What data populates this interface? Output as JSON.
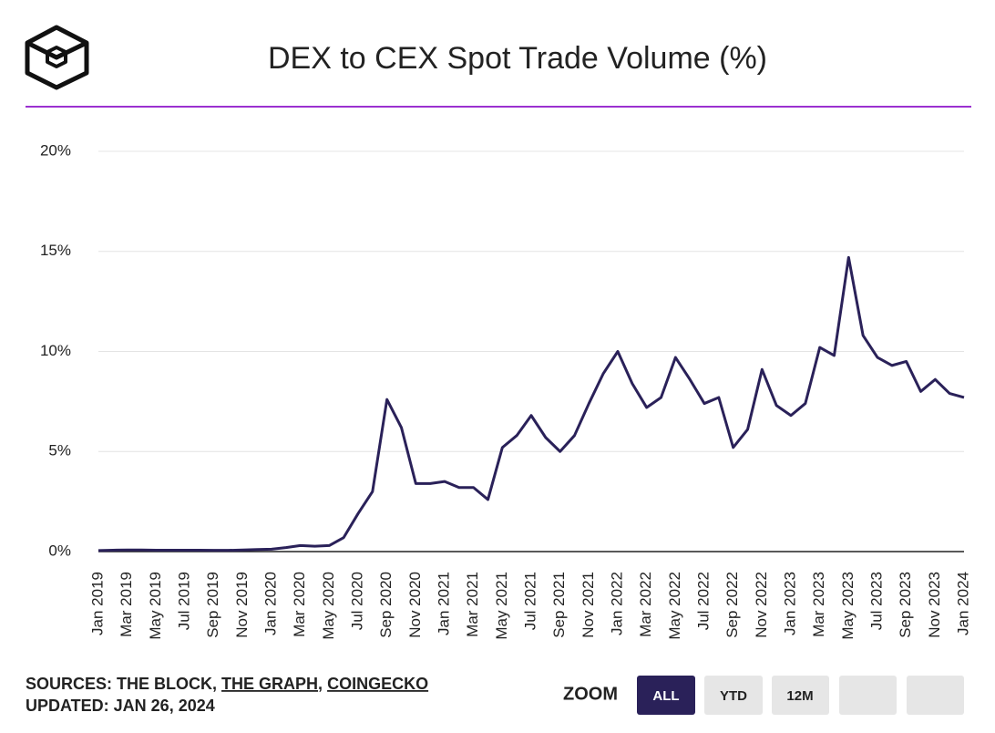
{
  "chart_data": {
    "type": "line",
    "title": "DEX to CEX Spot Trade Volume (%)",
    "categories": [
      "Jan 2019",
      null,
      "Mar 2019",
      null,
      "May 2019",
      null,
      "Jul 2019",
      null,
      "Sep 2019",
      null,
      "Nov 2019",
      null,
      "Jan 2020",
      null,
      "Mar 2020",
      null,
      "May 2020",
      null,
      "Jul 2020",
      null,
      "Sep 2020",
      null,
      "Nov 2020",
      null,
      "Jan 2021",
      null,
      "Mar 2021",
      null,
      "May 2021",
      null,
      "Jul 2021",
      null,
      "Sep 2021",
      null,
      "Nov 2021",
      null,
      "Jan 2022",
      null,
      "Mar 2022",
      null,
      "May 2022",
      null,
      "Jul 2022",
      null,
      "Sep 2022",
      null,
      "Nov 2022",
      null,
      "Jan 2023",
      null,
      "Mar 2023",
      null,
      "May 2023",
      null,
      "Jul 2023",
      null,
      "Sep 2023",
      null,
      "Nov 2023",
      null,
      "Jan 2024"
    ],
    "values": [
      0.05,
      0.07,
      0.08,
      0.08,
      0.07,
      0.07,
      0.07,
      0.07,
      0.06,
      0.06,
      0.08,
      0.1,
      0.12,
      0.2,
      0.3,
      0.27,
      0.3,
      0.7,
      1.9,
      3.0,
      7.6,
      6.2,
      3.4,
      3.4,
      3.5,
      3.2,
      3.2,
      2.6,
      5.2,
      5.8,
      6.8,
      5.7,
      5.0,
      5.8,
      7.4,
      8.9,
      10.0,
      8.4,
      7.2,
      7.7,
      9.7,
      8.6,
      7.4,
      7.7,
      5.2,
      6.1,
      9.1,
      7.3,
      6.8,
      7.4,
      10.2,
      9.8,
      14.7,
      10.8,
      9.7,
      9.3,
      9.5,
      8.0,
      8.6,
      7.9,
      7.7
    ],
    "color": "#2a2159",
    "ylim": [
      0,
      20
    ],
    "yticks": [
      {
        "value": 0,
        "label": "0%"
      },
      {
        "value": 5,
        "label": "5%"
      },
      {
        "value": 10,
        "label": "10%"
      },
      {
        "value": 15,
        "label": "15%"
      },
      {
        "value": 20,
        "label": "20%"
      }
    ],
    "grid": true
  },
  "footer": {
    "sources": [
      "SOURCES: THE BLOCK,",
      "THE GRAPH",
      ",",
      "COINGECKO"
    ],
    "updated": "UPDATED: JAN 26, 2024"
  },
  "zoom": {
    "label": "ZOOM",
    "buttons": [
      "ALL",
      "YTD",
      "12M"
    ]
  }
}
